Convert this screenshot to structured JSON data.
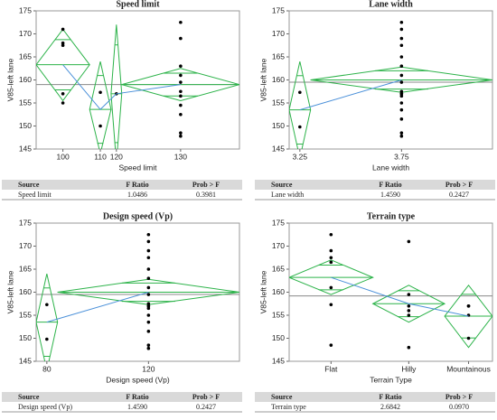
{
  "chart_data": [
    {
      "type": "oneway",
      "title": "Speed limit",
      "xlabel": "Speed limit",
      "ylabel": "V85-left lane",
      "ylim": [
        145,
        175
      ],
      "yticks": [
        145,
        150,
        155,
        160,
        165,
        170,
        175
      ],
      "grand_mean": 159,
      "diamond_color": "#2db34a",
      "line_color": "#4a90d9",
      "groups": [
        {
          "name": "100",
          "points": [
            171,
            168,
            167.5,
            157,
            155
          ],
          "mean": 163.3,
          "lower": 155.5,
          "upper": 171
        },
        {
          "name": "110",
          "points": [
            157.3,
            150
          ],
          "mean": 153.6,
          "lower": 144,
          "upper": 164
        },
        {
          "name": "120",
          "points": [
            157
          ],
          "mean": 157,
          "lower": 142,
          "upper": 172
        },
        {
          "name": "130",
          "points": [
            172.5,
            169,
            163,
            161,
            159.5,
            157.5,
            156.5,
            154.5,
            152.5,
            148.5,
            147.8
          ],
          "mean": 159,
          "lower": 155.5,
          "upper": 162.5
        }
      ]
    },
    {
      "type": "oneway",
      "title": "Lane width",
      "xlabel": "Lane width",
      "ylabel": "V85-left lane",
      "ylim": [
        145,
        175
      ],
      "yticks": [
        145,
        150,
        155,
        160,
        165,
        170,
        175
      ],
      "grand_mean": 159.5,
      "diamond_color": "#2db34a",
      "line_color": "#4a90d9",
      "groups": [
        {
          "name": "3.25",
          "points": [
            157.3,
            149.8
          ],
          "mean": 153.5,
          "lower": 143,
          "upper": 164
        },
        {
          "name": "3.75",
          "points": [
            172.5,
            171,
            169,
            167.5,
            165,
            163,
            161,
            159.5,
            157.5,
            157,
            157,
            156.5,
            155,
            153.5,
            151.5,
            148.5,
            147.8
          ],
          "mean": 160,
          "lower": 157.3,
          "upper": 162.8
        }
      ]
    },
    {
      "type": "oneway",
      "title": "Design speed (Vp)",
      "xlabel": "Design speed (Vp)",
      "ylabel": "V85-left lane",
      "ylim": [
        145,
        175
      ],
      "yticks": [
        145,
        150,
        155,
        160,
        165,
        170,
        175
      ],
      "grand_mean": 159.5,
      "diamond_color": "#2db34a",
      "line_color": "#4a90d9",
      "groups": [
        {
          "name": "80",
          "points": [
            157.3,
            149.8
          ],
          "mean": 153.5,
          "lower": 143,
          "upper": 164
        },
        {
          "name": "120",
          "points": [
            172.5,
            171,
            169,
            167.5,
            165,
            163,
            161,
            159.5,
            157.5,
            157,
            157,
            156.5,
            155,
            153.5,
            151.5,
            148.5,
            147.8
          ],
          "mean": 160,
          "lower": 157.3,
          "upper": 162.8
        }
      ]
    },
    {
      "type": "oneway",
      "title": "Terrain type",
      "xlabel": "Terrain Type",
      "ylabel": "V85-left lane",
      "ylim": [
        145,
        175
      ],
      "yticks": [
        145,
        150,
        155,
        160,
        165,
        170,
        175
      ],
      "grand_mean": 159.2,
      "diamond_color": "#2db34a",
      "line_color": "#4a90d9",
      "groups": [
        {
          "name": "Flat",
          "points": [
            172.5,
            169,
            167.5,
            166.5,
            161,
            157.3,
            148.5
          ],
          "mean": 163.2,
          "lower": 159.5,
          "upper": 167
        },
        {
          "name": "Hilly",
          "points": [
            171,
            159.5,
            157,
            156,
            155,
            148
          ],
          "mean": 157.5,
          "lower": 153.5,
          "upper": 161.5
        },
        {
          "name": "Mountainous",
          "points": [
            157,
            157,
            155,
            150
          ],
          "mean": 154.8,
          "lower": 148,
          "upper": 161.5
        }
      ]
    }
  ],
  "tables": [
    {
      "header": [
        "Source",
        "F Ratio",
        "Prob > F"
      ],
      "rows": [
        [
          "Speed limit",
          "1.0486",
          "0.3981"
        ]
      ]
    },
    {
      "header": [
        "Source",
        "F Ratio",
        "Prob > F"
      ],
      "rows": [
        [
          "Lane width",
          "1.4590",
          "0.2427"
        ]
      ]
    },
    {
      "header": [
        "Source",
        "F Ratio",
        "Prob > F"
      ],
      "rows": [
        [
          "Design speed (Vp)",
          "1.4590",
          "0.2427"
        ]
      ]
    },
    {
      "header": [
        "Source",
        "F Ratio",
        "Prob > F"
      ],
      "rows": [
        [
          "Terrain type",
          "2.6842",
          "0.0970"
        ]
      ]
    }
  ]
}
